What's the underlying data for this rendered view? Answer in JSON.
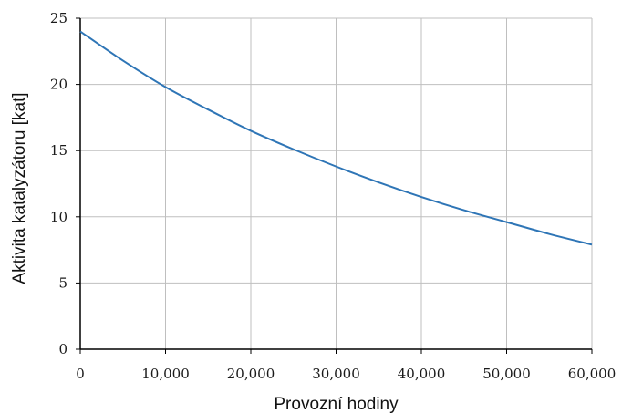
{
  "chart_data": {
    "type": "line",
    "title": "",
    "xlabel": "Provozní hodiny",
    "ylabel": "Aktivita katalyzátoru [kat]",
    "xlim": [
      0,
      60000
    ],
    "ylim": [
      0,
      25
    ],
    "grid": true,
    "legend": "none",
    "x_ticks": [
      0,
      10000,
      20000,
      30000,
      40000,
      50000,
      60000
    ],
    "x_tick_labels": [
      "0",
      "10,000",
      "20,000",
      "30,000",
      "40,000",
      "50,000",
      "60,000"
    ],
    "y_ticks": [
      0,
      5,
      10,
      15,
      20,
      25
    ],
    "y_tick_labels": [
      "0",
      "5",
      "10",
      "15",
      "20",
      "25"
    ],
    "series": [
      {
        "color": "#2e75b6",
        "x": [
          0,
          5000,
          10000,
          15000,
          20000,
          25000,
          30000,
          35000,
          40000,
          45000,
          50000,
          55000,
          60000
        ],
        "y": [
          24.0,
          21.8,
          19.8,
          18.1,
          16.5,
          15.1,
          13.8,
          12.6,
          11.5,
          10.5,
          9.6,
          8.7,
          7.9
        ]
      }
    ]
  },
  "colors": {
    "line": "#2e75b6",
    "grid": "#bfbfbf",
    "axis": "#000000"
  }
}
